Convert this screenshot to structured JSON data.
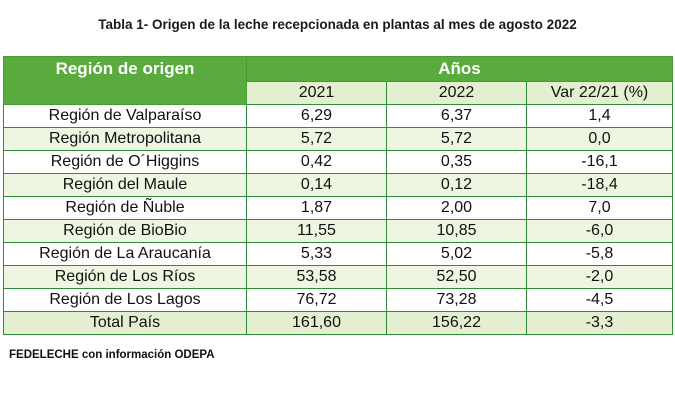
{
  "title": "Tabla 1- Origen de la leche recepcionada en plantas al mes de agosto 2022",
  "header": {
    "region_col": "Región de origen",
    "years_group": "Años",
    "col_2021": "2021",
    "col_2022": "2022",
    "col_var": "Var 22/21 (%)"
  },
  "rows": [
    {
      "region": "Región de Valparaíso",
      "y2021": "6,29",
      "y2022": "6,37",
      "var": "1,4"
    },
    {
      "region": "Región Metropolitana",
      "y2021": "5,72",
      "y2022": "5,72",
      "var": "0,0"
    },
    {
      "region": "Región de O´Higgins",
      "y2021": "0,42",
      "y2022": "0,35",
      "var": "-16,1"
    },
    {
      "region": "Región del Maule",
      "y2021": "0,14",
      "y2022": "0,12",
      "var": "-18,4"
    },
    {
      "region": "Región de Ñuble",
      "y2021": "1,87",
      "y2022": "2,00",
      "var": "7,0"
    },
    {
      "region": "Región de BioBio",
      "y2021": "11,55",
      "y2022": "10,85",
      "var": "-6,0"
    },
    {
      "region": "Región de La Araucanía",
      "y2021": "5,33",
      "y2022": "5,02",
      "var": "-5,8"
    },
    {
      "region": "Región de Los Ríos",
      "y2021": "53,58",
      "y2022": "52,50",
      "var": "-2,0"
    },
    {
      "region": "Región de Los Lagos",
      "y2021": "76,72",
      "y2022": "73,28",
      "var": "-4,5"
    }
  ],
  "total": {
    "region": "Total País",
    "y2021": "161,60",
    "y2022": "156,22",
    "var": "-3,3"
  },
  "source": "FEDELECHE con información ODEPA",
  "colors": {
    "header_green": "#5aab3e",
    "light_green": "#e3efcf",
    "border_green": "#2f8a3a"
  }
}
